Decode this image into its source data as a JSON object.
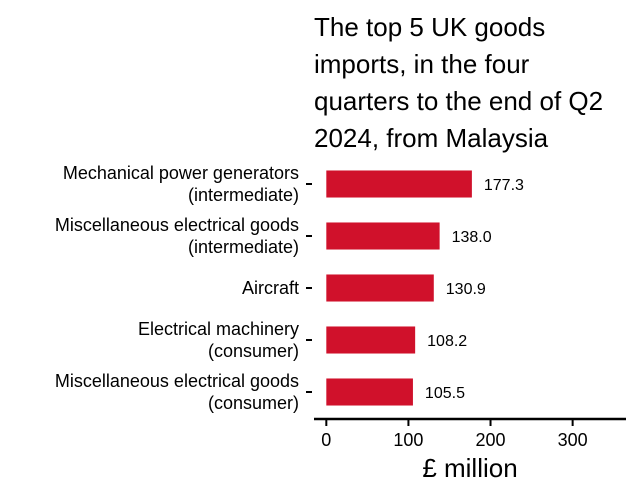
{
  "chart_data": {
    "type": "bar",
    "orientation": "horizontal",
    "title_lines": [
      "The top 5 UK goods",
      "imports, in the four",
      "quarters to the end of Q2",
      "2024, from Malaysia"
    ],
    "categories": [
      [
        "Mechanical power generators",
        "(intermediate)"
      ],
      [
        "Miscellaneous electrical goods",
        "(intermediate)"
      ],
      [
        "Aircraft"
      ],
      [
        "Electrical machinery",
        "(consumer)"
      ],
      [
        "Miscellaneous electrical goods",
        "(consumer)"
      ]
    ],
    "values": [
      177.3,
      138.0,
      130.9,
      108.2,
      105.5
    ],
    "data_labels": [
      "177.3",
      "138.0",
      "130.9",
      "108.2",
      "105.5"
    ],
    "xlabel": "£ million",
    "xlim": [
      -15,
      365
    ],
    "xticks": [
      0,
      100,
      200,
      300
    ],
    "xtick_labels": [
      "0",
      "100",
      "200",
      "300"
    ],
    "bar_color": "#D0112B",
    "grid": false
  }
}
